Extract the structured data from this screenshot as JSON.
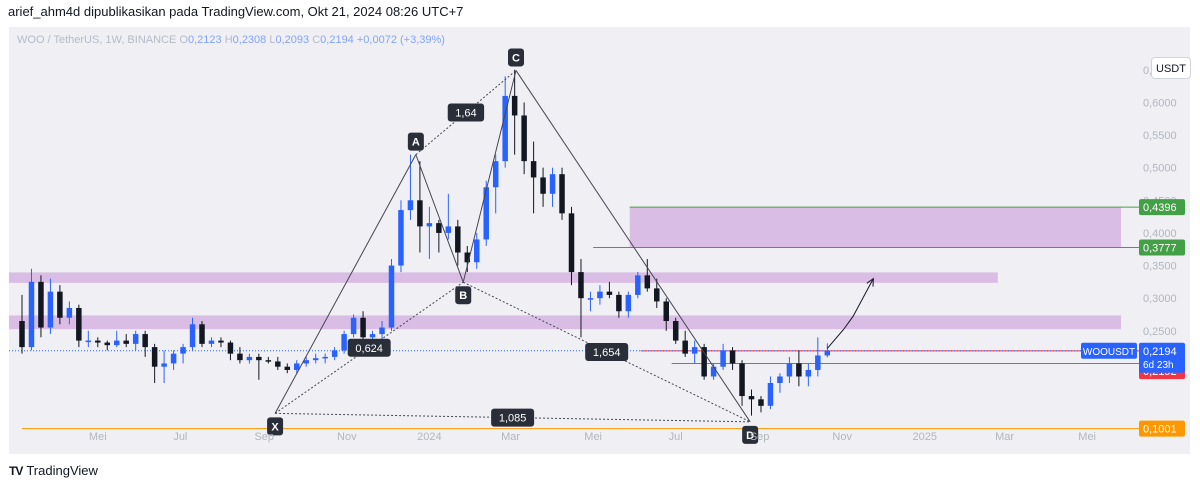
{
  "header": {
    "publish_line": "arief_ahm4d dipublikasikan pada TradingView.com, Okt 21, 2024 08:26 UTC+7"
  },
  "legend": {
    "symbol": "WOO / TetherUS, 1W, BINANCE",
    "o_key": "O",
    "o_val": "0,2123",
    "h_key": "H",
    "h_val": "0,2308",
    "l_key": "L",
    "l_val": "0,2093",
    "c_key": "C",
    "c_val": "0,2194",
    "change": "+0,0072 (+3,39%)"
  },
  "currency_button": "USDT",
  "footer": {
    "logo_text": "TV",
    "brand": "TradingView"
  },
  "colors": {
    "up": "#2962ff",
    "down": "#131722",
    "zone": "#d6b4e0",
    "green": "#43a047",
    "red_label": "#f23645",
    "orange": "#ff9800",
    "blue_label": "#2962ff",
    "pattern": "#434651"
  },
  "chart_data": {
    "type": "candlestick",
    "symbol": "WOO / TetherUS",
    "interval": "1W",
    "exchange": "BINANCE",
    "yaxis": {
      "range": [
        0.075,
        0.665
      ],
      "ticks": [
        0.25,
        0.3,
        0.35,
        0.4,
        0.45,
        0.5,
        0.55,
        0.6,
        0.65
      ],
      "tick_labels": [
        "0,2500",
        "0,3000",
        "0,3500",
        "0,4000",
        "0,4500",
        "0,5000",
        "0,5500",
        "0,6000",
        "0,6500"
      ]
    },
    "xaxis": {
      "range": [
        "2023-03-06",
        "2025-05-26"
      ],
      "ticks": [
        {
          "date": "2023-05-01",
          "label": "Mei"
        },
        {
          "date": "2023-07-01",
          "label": "Jul"
        },
        {
          "date": "2023-09-01",
          "label": "Sep"
        },
        {
          "date": "2023-11-01",
          "label": "Nov"
        },
        {
          "date": "2024-01-01",
          "label": "2024"
        },
        {
          "date": "2024-03-01",
          "label": "Mar"
        },
        {
          "date": "2024-05-01",
          "label": "Mei"
        },
        {
          "date": "2024-07-01",
          "label": "Jul"
        },
        {
          "date": "2024-09-01",
          "label": "Sep"
        },
        {
          "date": "2024-11-01",
          "label": "Nov"
        },
        {
          "date": "2025-01-01",
          "label": "2025"
        },
        {
          "date": "2025-03-01",
          "label": "Mar"
        },
        {
          "date": "2025-05-01",
          "label": "Mei"
        }
      ]
    },
    "candles": [
      {
        "t": "2023-03-06",
        "o": 0.265,
        "h": 0.305,
        "l": 0.215,
        "c": 0.225
      },
      {
        "t": "2023-03-13",
        "o": 0.225,
        "h": 0.345,
        "l": 0.22,
        "c": 0.325
      },
      {
        "t": "2023-03-20",
        "o": 0.325,
        "h": 0.335,
        "l": 0.24,
        "c": 0.255
      },
      {
        "t": "2023-03-27",
        "o": 0.255,
        "h": 0.33,
        "l": 0.245,
        "c": 0.31
      },
      {
        "t": "2023-04-03",
        "o": 0.31,
        "h": 0.32,
        "l": 0.26,
        "c": 0.27
      },
      {
        "t": "2023-04-10",
        "o": 0.27,
        "h": 0.295,
        "l": 0.26,
        "c": 0.285
      },
      {
        "t": "2023-04-17",
        "o": 0.285,
        "h": 0.29,
        "l": 0.225,
        "c": 0.235
      },
      {
        "t": "2023-04-24",
        "o": 0.235,
        "h": 0.25,
        "l": 0.225,
        "c": 0.235
      },
      {
        "t": "2023-05-01",
        "o": 0.235,
        "h": 0.24,
        "l": 0.225,
        "c": 0.232
      },
      {
        "t": "2023-05-08",
        "o": 0.232,
        "h": 0.235,
        "l": 0.22,
        "c": 0.228
      },
      {
        "t": "2023-05-15",
        "o": 0.228,
        "h": 0.25,
        "l": 0.225,
        "c": 0.235
      },
      {
        "t": "2023-05-22",
        "o": 0.235,
        "h": 0.245,
        "l": 0.225,
        "c": 0.23
      },
      {
        "t": "2023-05-29",
        "o": 0.23,
        "h": 0.25,
        "l": 0.22,
        "c": 0.245
      },
      {
        "t": "2023-06-05",
        "o": 0.245,
        "h": 0.25,
        "l": 0.21,
        "c": 0.225
      },
      {
        "t": "2023-06-12",
        "o": 0.225,
        "h": 0.23,
        "l": 0.17,
        "c": 0.195
      },
      {
        "t": "2023-06-19",
        "o": 0.195,
        "h": 0.22,
        "l": 0.17,
        "c": 0.2
      },
      {
        "t": "2023-06-26",
        "o": 0.2,
        "h": 0.22,
        "l": 0.19,
        "c": 0.215
      },
      {
        "t": "2023-07-03",
        "o": 0.215,
        "h": 0.23,
        "l": 0.2,
        "c": 0.225
      },
      {
        "t": "2023-07-10",
        "o": 0.225,
        "h": 0.27,
        "l": 0.22,
        "c": 0.26
      },
      {
        "t": "2023-07-17",
        "o": 0.26,
        "h": 0.265,
        "l": 0.225,
        "c": 0.23
      },
      {
        "t": "2023-07-24",
        "o": 0.23,
        "h": 0.24,
        "l": 0.225,
        "c": 0.235
      },
      {
        "t": "2023-07-31",
        "o": 0.235,
        "h": 0.24,
        "l": 0.225,
        "c": 0.232
      },
      {
        "t": "2023-08-07",
        "o": 0.232,
        "h": 0.235,
        "l": 0.205,
        "c": 0.215
      },
      {
        "t": "2023-08-14",
        "o": 0.215,
        "h": 0.225,
        "l": 0.2,
        "c": 0.205
      },
      {
        "t": "2023-08-21",
        "o": 0.205,
        "h": 0.215,
        "l": 0.2,
        "c": 0.21
      },
      {
        "t": "2023-08-28",
        "o": 0.21,
        "h": 0.215,
        "l": 0.175,
        "c": 0.205
      },
      {
        "t": "2023-09-04",
        "o": 0.205,
        "h": 0.21,
        "l": 0.2,
        "c": 0.203
      },
      {
        "t": "2023-09-11",
        "o": 0.203,
        "h": 0.21,
        "l": 0.19,
        "c": 0.195
      },
      {
        "t": "2023-09-18",
        "o": 0.195,
        "h": 0.2,
        "l": 0.185,
        "c": 0.19
      },
      {
        "t": "2023-09-25",
        "o": 0.19,
        "h": 0.205,
        "l": 0.185,
        "c": 0.2
      },
      {
        "t": "2023-10-02",
        "o": 0.2,
        "h": 0.21,
        "l": 0.195,
        "c": 0.205
      },
      {
        "t": "2023-10-09",
        "o": 0.205,
        "h": 0.215,
        "l": 0.2,
        "c": 0.208
      },
      {
        "t": "2023-10-16",
        "o": 0.208,
        "h": 0.215,
        "l": 0.2,
        "c": 0.21
      },
      {
        "t": "2023-10-23",
        "o": 0.21,
        "h": 0.225,
        "l": 0.205,
        "c": 0.22
      },
      {
        "t": "2023-10-30",
        "o": 0.22,
        "h": 0.25,
        "l": 0.215,
        "c": 0.245
      },
      {
        "t": "2023-11-06",
        "o": 0.245,
        "h": 0.275,
        "l": 0.24,
        "c": 0.27
      },
      {
        "t": "2023-11-13",
        "o": 0.27,
        "h": 0.28,
        "l": 0.235,
        "c": 0.24
      },
      {
        "t": "2023-11-20",
        "o": 0.24,
        "h": 0.25,
        "l": 0.23,
        "c": 0.245
      },
      {
        "t": "2023-11-27",
        "o": 0.245,
        "h": 0.265,
        "l": 0.235,
        "c": 0.255
      },
      {
        "t": "2023-12-04",
        "o": 0.255,
        "h": 0.36,
        "l": 0.25,
        "c": 0.35
      },
      {
        "t": "2023-12-11",
        "o": 0.35,
        "h": 0.45,
        "l": 0.34,
        "c": 0.435
      },
      {
        "t": "2023-12-18",
        "o": 0.435,
        "h": 0.52,
        "l": 0.42,
        "c": 0.45
      },
      {
        "t": "2023-12-25",
        "o": 0.45,
        "h": 0.51,
        "l": 0.37,
        "c": 0.41
      },
      {
        "t": "2024-01-01",
        "o": 0.41,
        "h": 0.44,
        "l": 0.36,
        "c": 0.415
      },
      {
        "t": "2024-01-08",
        "o": 0.415,
        "h": 0.42,
        "l": 0.37,
        "c": 0.4
      },
      {
        "t": "2024-01-15",
        "o": 0.4,
        "h": 0.46,
        "l": 0.39,
        "c": 0.41
      },
      {
        "t": "2024-01-22",
        "o": 0.41,
        "h": 0.42,
        "l": 0.35,
        "c": 0.37
      },
      {
        "t": "2024-01-29",
        "o": 0.37,
        "h": 0.38,
        "l": 0.34,
        "c": 0.355
      },
      {
        "t": "2024-02-05",
        "o": 0.355,
        "h": 0.4,
        "l": 0.345,
        "c": 0.39
      },
      {
        "t": "2024-02-12",
        "o": 0.39,
        "h": 0.48,
        "l": 0.38,
        "c": 0.47
      },
      {
        "t": "2024-02-19",
        "o": 0.47,
        "h": 0.52,
        "l": 0.43,
        "c": 0.51
      },
      {
        "t": "2024-02-26",
        "o": 0.51,
        "h": 0.64,
        "l": 0.5,
        "c": 0.61
      },
      {
        "t": "2024-03-04",
        "o": 0.61,
        "h": 0.65,
        "l": 0.52,
        "c": 0.58
      },
      {
        "t": "2024-03-11",
        "o": 0.58,
        "h": 0.6,
        "l": 0.49,
        "c": 0.51
      },
      {
        "t": "2024-03-18",
        "o": 0.51,
        "h": 0.54,
        "l": 0.43,
        "c": 0.485
      },
      {
        "t": "2024-03-25",
        "o": 0.485,
        "h": 0.5,
        "l": 0.44,
        "c": 0.46
      },
      {
        "t": "2024-04-01",
        "o": 0.46,
        "h": 0.5,
        "l": 0.44,
        "c": 0.49
      },
      {
        "t": "2024-04-08",
        "o": 0.49,
        "h": 0.5,
        "l": 0.42,
        "c": 0.43
      },
      {
        "t": "2024-04-15",
        "o": 0.43,
        "h": 0.44,
        "l": 0.32,
        "c": 0.34
      },
      {
        "t": "2024-04-22",
        "o": 0.34,
        "h": 0.36,
        "l": 0.24,
        "c": 0.3
      },
      {
        "t": "2024-04-29",
        "o": 0.3,
        "h": 0.31,
        "l": 0.28,
        "c": 0.3
      },
      {
        "t": "2024-05-06",
        "o": 0.3,
        "h": 0.32,
        "l": 0.29,
        "c": 0.31
      },
      {
        "t": "2024-05-13",
        "o": 0.31,
        "h": 0.325,
        "l": 0.3,
        "c": 0.305
      },
      {
        "t": "2024-05-20",
        "o": 0.305,
        "h": 0.31,
        "l": 0.27,
        "c": 0.28
      },
      {
        "t": "2024-05-27",
        "o": 0.28,
        "h": 0.31,
        "l": 0.27,
        "c": 0.305
      },
      {
        "t": "2024-06-03",
        "o": 0.305,
        "h": 0.34,
        "l": 0.3,
        "c": 0.335
      },
      {
        "t": "2024-06-10",
        "o": 0.335,
        "h": 0.36,
        "l": 0.31,
        "c": 0.315
      },
      {
        "t": "2024-06-17",
        "o": 0.315,
        "h": 0.33,
        "l": 0.285,
        "c": 0.295
      },
      {
        "t": "2024-06-24",
        "o": 0.295,
        "h": 0.3,
        "l": 0.25,
        "c": 0.265
      },
      {
        "t": "2024-07-01",
        "o": 0.265,
        "h": 0.27,
        "l": 0.23,
        "c": 0.235
      },
      {
        "t": "2024-07-08",
        "o": 0.235,
        "h": 0.25,
        "l": 0.21,
        "c": 0.215
      },
      {
        "t": "2024-07-15",
        "o": 0.215,
        "h": 0.235,
        "l": 0.2,
        "c": 0.225
      },
      {
        "t": "2024-07-22",
        "o": 0.225,
        "h": 0.23,
        "l": 0.175,
        "c": 0.18
      },
      {
        "t": "2024-07-29",
        "o": 0.18,
        "h": 0.2,
        "l": 0.175,
        "c": 0.195
      },
      {
        "t": "2024-08-05",
        "o": 0.195,
        "h": 0.23,
        "l": 0.19,
        "c": 0.22
      },
      {
        "t": "2024-08-12",
        "o": 0.22,
        "h": 0.225,
        "l": 0.19,
        "c": 0.2
      },
      {
        "t": "2024-08-19",
        "o": 0.2,
        "h": 0.205,
        "l": 0.135,
        "c": 0.15
      },
      {
        "t": "2024-08-26",
        "o": 0.15,
        "h": 0.16,
        "l": 0.12,
        "c": 0.145
      },
      {
        "t": "2024-09-02",
        "o": 0.145,
        "h": 0.15,
        "l": 0.125,
        "c": 0.135
      },
      {
        "t": "2024-09-09",
        "o": 0.135,
        "h": 0.18,
        "l": 0.13,
        "c": 0.17
      },
      {
        "t": "2024-09-16",
        "o": 0.17,
        "h": 0.185,
        "l": 0.155,
        "c": 0.18
      },
      {
        "t": "2024-09-23",
        "o": 0.18,
        "h": 0.21,
        "l": 0.17,
        "c": 0.2
      },
      {
        "t": "2024-09-30",
        "o": 0.2,
        "h": 0.22,
        "l": 0.165,
        "c": 0.18
      },
      {
        "t": "2024-10-07",
        "o": 0.18,
        "h": 0.2,
        "l": 0.165,
        "c": 0.19
      },
      {
        "t": "2024-10-14",
        "o": 0.19,
        "h": 0.24,
        "l": 0.18,
        "c": 0.2122
      },
      {
        "t": "2024-10-21",
        "o": 0.2123,
        "h": 0.2308,
        "l": 0.2093,
        "c": 0.2194
      }
    ],
    "zones": [
      {
        "from": 0.3235,
        "to": 0.3395,
        "x_end": "2025-02-24"
      },
      {
        "from": 0.2525,
        "to": 0.2735,
        "x_end": "2025-05-26"
      },
      {
        "from": 0.3777,
        "to": 0.4396,
        "x_start": "2024-05-28",
        "x_end": "2025-05-26"
      }
    ],
    "hlines": [
      {
        "price": 0.4396,
        "label": "0,4396",
        "color": "#43a047",
        "x_start": "2024-05-28"
      },
      {
        "price": 0.3777,
        "label": "0,3777",
        "color": "#43a047",
        "x_start": "2024-05-01"
      },
      {
        "price": 0.1999,
        "label": "0,1999",
        "color": "#43a047",
        "x_start": "2024-06-28"
      },
      {
        "price": 0.1001,
        "label": "0,1001",
        "color": "#ff9800",
        "x_start": "2023-03-06"
      },
      {
        "price": 0.2192,
        "label": "0,2192",
        "color": "#f23645",
        "x_start": "2024-06-05",
        "label_y": 0.1882
      }
    ],
    "last_price": {
      "price": 0.2194,
      "symbol": "WOOUSDT",
      "value": "0,2194",
      "countdown": "6d 23h"
    },
    "harmonic": {
      "points": [
        {
          "label": "X",
          "t": "2023-09-09",
          "p": 0.1235
        },
        {
          "label": "A",
          "t": "2023-12-22",
          "p": 0.52
        },
        {
          "label": "B",
          "t": "2024-01-26",
          "p": 0.3245
        },
        {
          "label": "C",
          "t": "2024-03-05",
          "p": 0.649
        },
        {
          "label": "D",
          "t": "2024-08-25",
          "p": 0.1105
        }
      ],
      "ratios": [
        {
          "label": "1,64",
          "from": "A",
          "to": "C"
        },
        {
          "label": "0,624",
          "from": "X",
          "to": "B"
        },
        {
          "label": "1,654",
          "from": "B",
          "to": "D"
        },
        {
          "label": "1,085",
          "from": "X",
          "to": "D"
        }
      ],
      "projection": [
        {
          "t": "2024-10-21",
          "p": 0.223
        },
        {
          "t": "2024-11-02",
          "p": 0.252
        },
        {
          "t": "2024-11-09",
          "p": 0.272
        },
        {
          "t": "2024-11-24",
          "p": 0.33
        }
      ]
    }
  }
}
